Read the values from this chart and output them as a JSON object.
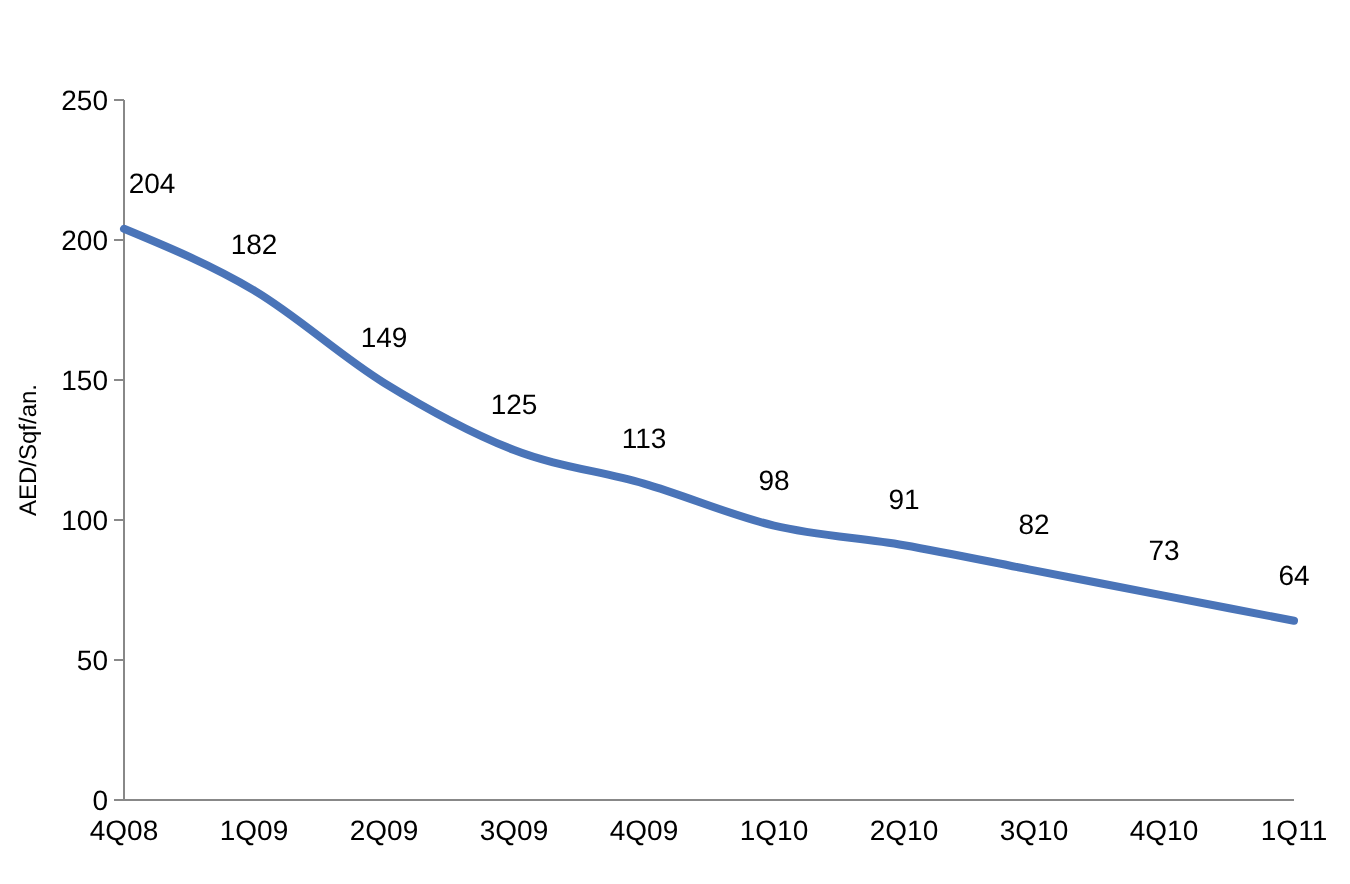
{
  "chart_data": {
    "type": "line",
    "ylabel": "AED/Sqf/an.",
    "categories": [
      "4Q08",
      "1Q09",
      "2Q09",
      "3Q09",
      "4Q09",
      "1Q10",
      "2Q10",
      "3Q10",
      "4Q10",
      "1Q11"
    ],
    "series": [
      {
        "color": "#4a74b8",
        "values": [
          204,
          182,
          149,
          125,
          113,
          98,
          91,
          82,
          73,
          64
        ]
      }
    ],
    "ylim": [
      0,
      250
    ],
    "yticks": [
      0,
      50,
      100,
      150,
      200,
      250
    ],
    "grid": false,
    "data_labels": true,
    "marker": "none",
    "line_style": "solid"
  }
}
